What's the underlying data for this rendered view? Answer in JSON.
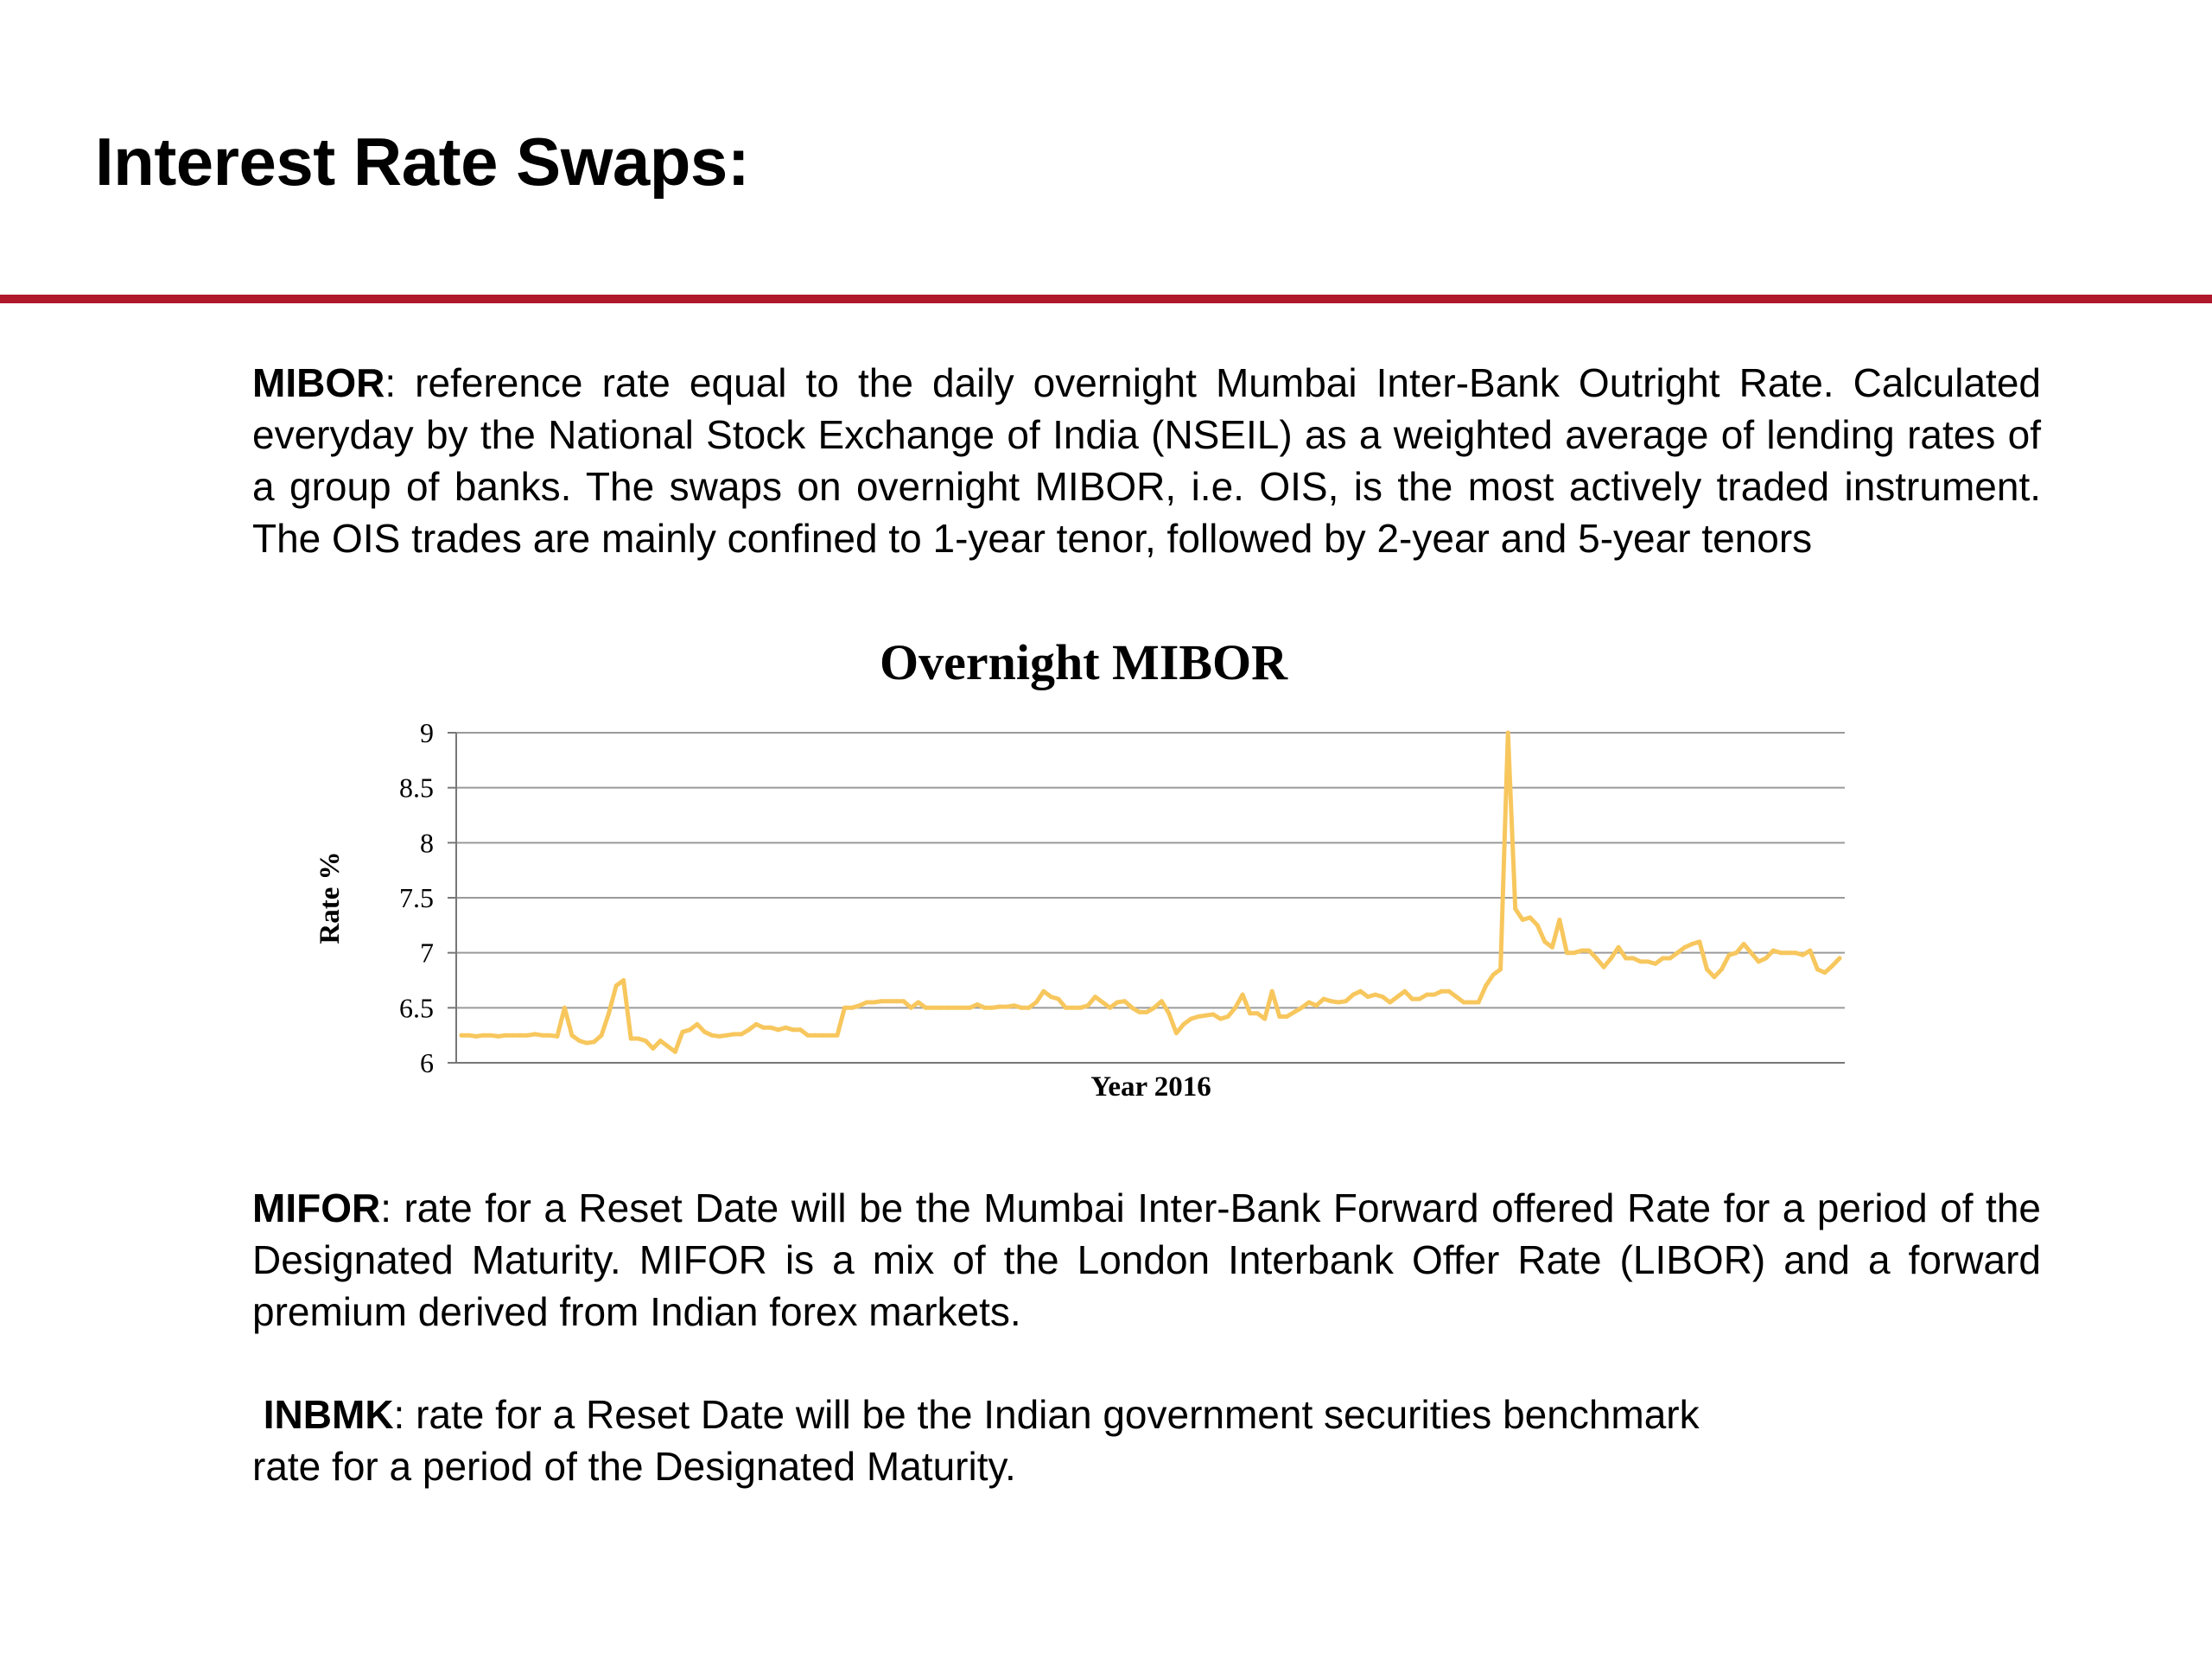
{
  "page": {
    "title": "Interest Rate Swaps:",
    "rule_color": "#b0182c"
  },
  "mibor": {
    "term": "MIBOR",
    "text": ": reference rate equal to the daily overnight Mumbai Inter-Bank Outright Rate. Calculated everyday by the National Stock Exchange of India (NSEIL) as a weighted average of lending rates of a group of banks.  The swaps on overnight MIBOR, i.e. OIS, is the most actively traded instrument. The OIS trades are mainly confined to 1-year tenor, followed by 2-year and 5-year tenors"
  },
  "mifor": {
    "term": "MIFOR",
    "text": ": rate for a Reset Date will be the Mumbai Inter-Bank Forward offered Rate for a period of the Designated Maturity. MIFOR is a mix of the London Interbank Offer Rate (LIBOR) and a forward premium derived from Indian forex markets."
  },
  "inbmk": {
    "term": "INBMK",
    "text_line1": ": rate for a Reset Date will be the Indian government securities benchmark",
    "text_line2": "rate for a period of the Designated Maturity."
  },
  "chart_data": {
    "type": "line",
    "title": "Overnight MIBOR",
    "xlabel": "Year 2016",
    "ylabel": "Rate %",
    "ylim": [
      6,
      9
    ],
    "yticks": [
      "6",
      "6.5",
      "7",
      "7.5",
      "8",
      "8.5",
      "9"
    ],
    "grid": true,
    "line_color": "#f7c75e",
    "x_axis": "trading days of 2016 (no tick labels shown)",
    "values": [
      6.25,
      6.25,
      6.24,
      6.25,
      6.25,
      6.24,
      6.25,
      6.25,
      6.25,
      6.25,
      6.26,
      6.25,
      6.25,
      6.24,
      6.5,
      6.25,
      6.2,
      6.18,
      6.19,
      6.25,
      6.45,
      6.7,
      6.75,
      6.22,
      6.22,
      6.2,
      6.13,
      6.2,
      6.15,
      6.1,
      6.28,
      6.3,
      6.35,
      6.28,
      6.25,
      6.24,
      6.25,
      6.26,
      6.26,
      6.3,
      6.35,
      6.32,
      6.32,
      6.3,
      6.32,
      6.3,
      6.3,
      6.25,
      6.25,
      6.25,
      6.25,
      6.25,
      6.5,
      6.5,
      6.52,
      6.55,
      6.55,
      6.56,
      6.56,
      6.56,
      6.56,
      6.5,
      6.55,
      6.5,
      6.5,
      6.5,
      6.5,
      6.5,
      6.5,
      6.5,
      6.53,
      6.5,
      6.5,
      6.51,
      6.51,
      6.52,
      6.5,
      6.5,
      6.55,
      6.65,
      6.6,
      6.58,
      6.5,
      6.5,
      6.5,
      6.52,
      6.6,
      6.55,
      6.5,
      6.55,
      6.56,
      6.5,
      6.46,
      6.46,
      6.5,
      6.56,
      6.45,
      6.27,
      6.35,
      6.4,
      6.42,
      6.43,
      6.44,
      6.4,
      6.42,
      6.5,
      6.62,
      6.45,
      6.45,
      6.4,
      6.65,
      6.42,
      6.42,
      6.46,
      6.5,
      6.55,
      6.52,
      6.58,
      6.56,
      6.55,
      6.56,
      6.62,
      6.65,
      6.6,
      6.62,
      6.6,
      6.55,
      6.6,
      6.65,
      6.58,
      6.58,
      6.62,
      6.62,
      6.65,
      6.65,
      6.6,
      6.55,
      6.55,
      6.55,
      6.7,
      6.8,
      6.85,
      9.0,
      7.4,
      7.3,
      7.32,
      7.25,
      7.1,
      7.05,
      7.3,
      7.0,
      7.0,
      7.02,
      7.02,
      6.95,
      6.87,
      6.95,
      7.05,
      6.95,
      6.95,
      6.92,
      6.92,
      6.9,
      6.95,
      6.95,
      7.0,
      7.05,
      7.08,
      7.1,
      6.85,
      6.78,
      6.85,
      6.98,
      7.0,
      7.08,
      7.0,
      6.92,
      6.95,
      7.02,
      7.0,
      7.0,
      7.0,
      6.98,
      7.02,
      6.85,
      6.82,
      6.88,
      6.95
    ]
  }
}
